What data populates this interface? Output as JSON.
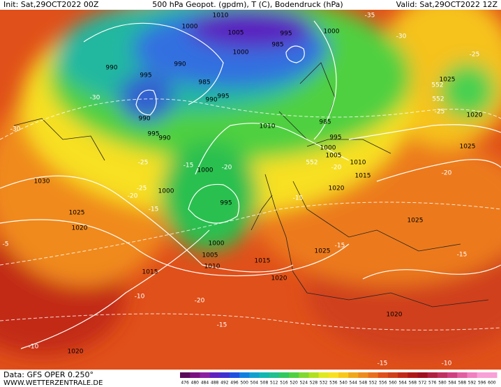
{
  "header": {
    "init": "Init: Sat,29OCT2022 00Z",
    "title": "500 hPa Geopot. (gpdm), T (C), Bodendruck (hPa)",
    "valid": "Valid: Sat,29OCT2022 12Z"
  },
  "footer": {
    "data": "Data: GFS OPER 0.250°",
    "site": "WWW.WETTERZENTRALE.DE"
  },
  "colorbar": {
    "labels": [
      476,
      480,
      484,
      488,
      492,
      496,
      500,
      504,
      508,
      512,
      516,
      520,
      524,
      528,
      532,
      536,
      540,
      544,
      548,
      552,
      556,
      560,
      564,
      568,
      572,
      576,
      580,
      584,
      588,
      592,
      596,
      600
    ]
  },
  "pressure_labels": [
    "1010",
    "1000",
    "1005",
    "1000",
    "985",
    "995",
    "1000",
    "990",
    "995",
    "990",
    "985",
    "990",
    "995",
    "990",
    "995",
    "990",
    "1010",
    "985",
    "995",
    "1000",
    "1005",
    "1010",
    "1015",
    "1020",
    "1025",
    "1020",
    "1025",
    "1030",
    "1025",
    "1020",
    "1000",
    "1000",
    "995",
    "1000",
    "1005",
    "1010",
    "1015",
    "1015",
    "1020",
    "1025",
    "1025",
    "1020",
    "1020"
  ],
  "temperature_labels": [
    "-35",
    "-30",
    "-25",
    "-25",
    "-30",
    "-30",
    "-25",
    "-25",
    "-20",
    "-15",
    "-20",
    "-15",
    "-15",
    "-20",
    "-15",
    "-20",
    "-15",
    "-10",
    "-20",
    "-15",
    "-10",
    "-15",
    "-10",
    "-5",
    "552",
    "552",
    "552"
  ]
}
